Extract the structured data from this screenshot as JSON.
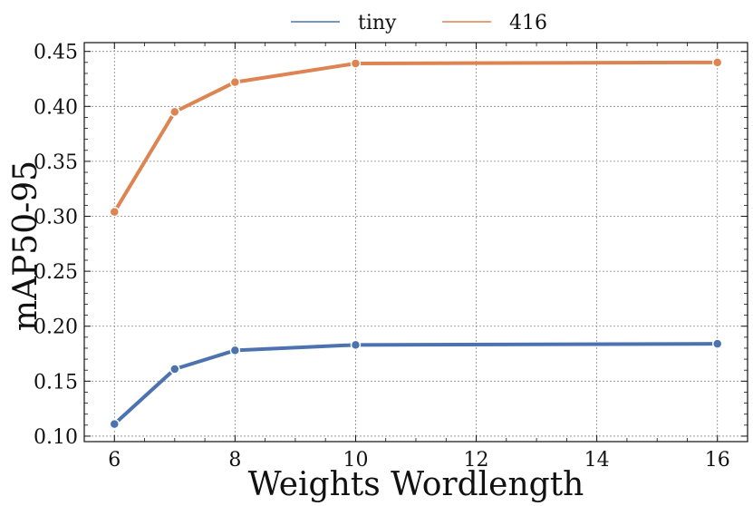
{
  "chart_data": {
    "type": "line",
    "title": "",
    "xlabel": "Weights Wordlength",
    "ylabel": "mAP50-95",
    "x": [
      6,
      7,
      8,
      10,
      16
    ],
    "series": [
      {
        "name": "tiny",
        "color": "#4c72b0",
        "values": [
          0.111,
          0.161,
          0.178,
          0.183,
          0.184
        ]
      },
      {
        "name": "416",
        "color": "#dd8452",
        "values": [
          0.304,
          0.395,
          0.422,
          0.439,
          0.44
        ]
      }
    ],
    "xlim": [
      5.5,
      16.5
    ],
    "ylim": [
      0.095,
      0.458
    ],
    "xticks": [
      6,
      8,
      10,
      12,
      14,
      16
    ],
    "xtick_labels": [
      "6",
      "8",
      "10",
      "12",
      "14",
      "16"
    ],
    "yticks": [
      0.1,
      0.15,
      0.2,
      0.25,
      0.3,
      0.35,
      0.4,
      0.45
    ],
    "ytick_labels": [
      "0.10",
      "0.15",
      "0.20",
      "0.25",
      "0.30",
      "0.35",
      "0.40",
      "0.45"
    ],
    "grid": true,
    "legend_position": "top-center"
  }
}
